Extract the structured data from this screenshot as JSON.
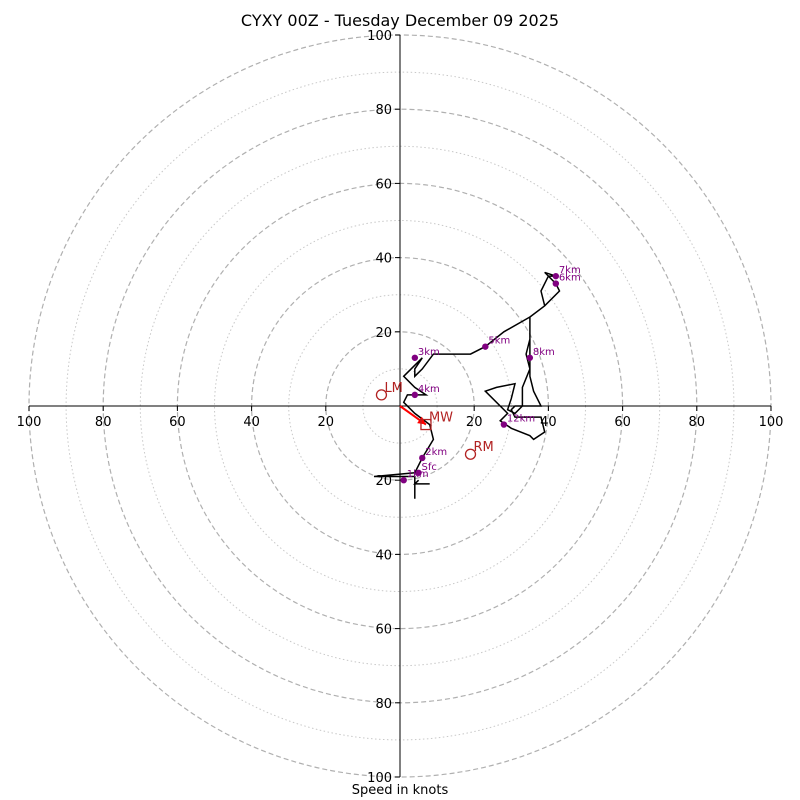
{
  "chart_data": {
    "type": "hodograph",
    "title": "CYXY 00Z - Tuesday December 09 2025",
    "xlabel": "Speed in knots",
    "units": "knots",
    "range": [
      -100,
      100
    ],
    "ring_values_dashed": [
      20,
      40,
      60,
      80,
      100
    ],
    "ring_values_dotted": [
      10,
      30,
      50,
      70,
      90
    ],
    "tick_labels": [
      "100",
      "80",
      "60",
      "40",
      "20"
    ],
    "hodograph_trace": [
      [
        5,
        -20
      ],
      [
        4,
        -21
      ],
      [
        8,
        -21
      ],
      [
        4,
        -21
      ],
      [
        4,
        -25
      ],
      [
        4,
        -21
      ],
      [
        4,
        -19
      ],
      [
        -7,
        -19
      ],
      [
        4,
        -18
      ],
      [
        6,
        -14
      ],
      [
        9,
        -9
      ],
      [
        8,
        -5
      ],
      [
        4,
        -2
      ],
      [
        1,
        1
      ],
      [
        2,
        3
      ],
      [
        4,
        3
      ],
      [
        7,
        3
      ],
      [
        4,
        5
      ],
      [
        1,
        8
      ],
      [
        6,
        13
      ],
      [
        4,
        10
      ],
      [
        4,
        8
      ],
      [
        6,
        10
      ],
      [
        9,
        14
      ],
      [
        11,
        14
      ],
      [
        19,
        14
      ],
      [
        23,
        16
      ],
      [
        28,
        20
      ],
      [
        35,
        24
      ],
      [
        35,
        20
      ],
      [
        35,
        14
      ],
      [
        35,
        11
      ],
      [
        35,
        10
      ],
      [
        35,
        8
      ],
      [
        36,
        4
      ],
      [
        38,
        0
      ],
      [
        31,
        0
      ],
      [
        30,
        -1
      ],
      [
        31,
        -3
      ],
      [
        34,
        -3
      ],
      [
        38,
        -3
      ],
      [
        39,
        -7
      ],
      [
        36,
        -9
      ],
      [
        35,
        -8
      ],
      [
        30,
        -6
      ],
      [
        27,
        -4
      ],
      [
        29,
        -2
      ],
      [
        23,
        4
      ],
      [
        26,
        5
      ],
      [
        31,
        6
      ],
      [
        30,
        2
      ],
      [
        29,
        -1
      ],
      [
        31,
        -2
      ],
      [
        33,
        0
      ],
      [
        33,
        5
      ],
      [
        35,
        10
      ],
      [
        34,
        14
      ],
      [
        35,
        18
      ],
      [
        35,
        24
      ],
      [
        39,
        27
      ],
      [
        43,
        31
      ],
      [
        42,
        33
      ],
      [
        39,
        36
      ],
      [
        42,
        35
      ],
      [
        40,
        35
      ],
      [
        38,
        31
      ],
      [
        39,
        27
      ]
    ],
    "height_markers": [
      {
        "label": "Sfc",
        "u": 5,
        "v": -18
      },
      {
        "label": "1km",
        "u": 1,
        "v": -20
      },
      {
        "label": "2km",
        "u": 6,
        "v": -14
      },
      {
        "label": "3km",
        "u": 4,
        "v": 13
      },
      {
        "label": "4km",
        "u": 4,
        "v": 3
      },
      {
        "label": "5km",
        "u": 23,
        "v": 16
      },
      {
        "label": "6km",
        "u": 42,
        "v": 33
      },
      {
        "label": "7km",
        "u": 42,
        "v": 35
      },
      {
        "label": "8km",
        "u": 35,
        "v": 13
      },
      {
        "label": "12km",
        "u": 28,
        "v": -5
      }
    ],
    "storm_motion": {
      "LM": {
        "label": "LM",
        "u": -5,
        "v": 3
      },
      "RM": {
        "label": "RM",
        "u": 19,
        "v": -13
      },
      "MW": {
        "label": "MW",
        "u": 7,
        "v": -5
      }
    },
    "colors": {
      "trace": "#000000",
      "markers": "#800080",
      "storm_motion": "#b22222",
      "mean_wind_vector": "#ff0000",
      "grid": "#b0b0b0"
    }
  }
}
